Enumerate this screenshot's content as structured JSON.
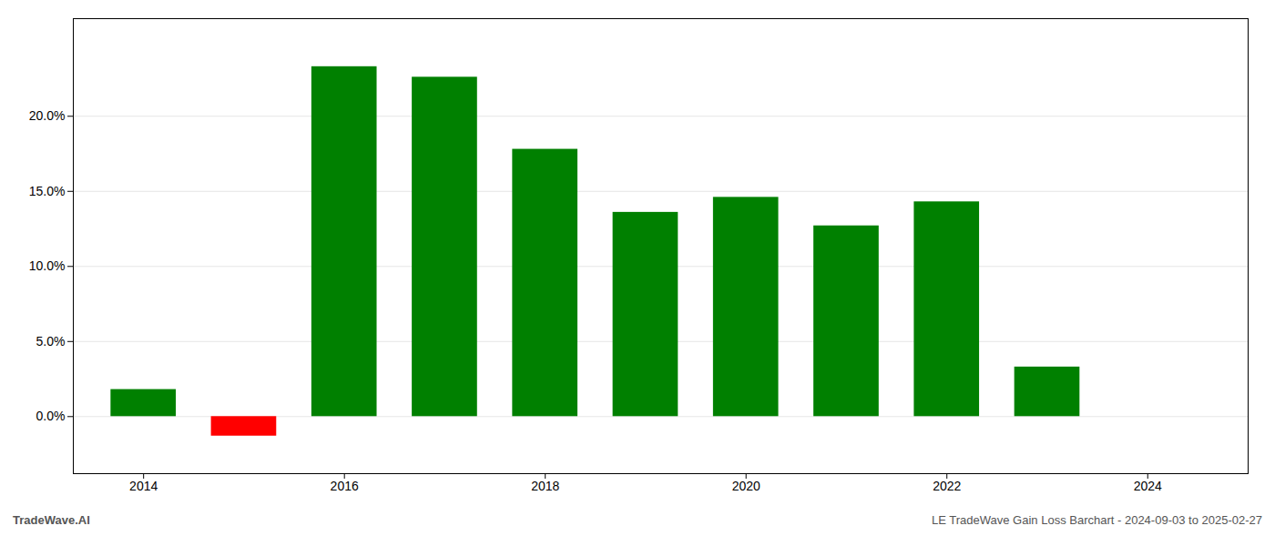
{
  "chart_data": {
    "type": "bar",
    "title": "LE TradeWave Gain Loss Barchart - 2024-09-03 to 2025-02-27",
    "annotations": [
      "TradeWave.AI"
    ],
    "x": [
      2014,
      2015,
      2016,
      2017,
      2018,
      2019,
      2020,
      2021,
      2022,
      2023
    ],
    "values": [
      0.018,
      -0.013,
      0.233,
      0.226,
      0.178,
      0.136,
      0.146,
      0.127,
      0.143,
      0.033
    ],
    "colors": [
      "#008000",
      "#ff0000",
      "#008000",
      "#008000",
      "#008000",
      "#008000",
      "#008000",
      "#008000",
      "#008000",
      "#008000"
    ],
    "xlim": [
      2013.3,
      2025.0
    ],
    "xticks": [
      2014,
      2016,
      2018,
      2020,
      2022,
      2024
    ],
    "ylim": [
      -0.038,
      0.265
    ],
    "yticks": [
      {
        "value": 0.0,
        "label": "0.0%"
      },
      {
        "value": 0.05,
        "label": "5.0%"
      },
      {
        "value": 0.1,
        "label": "10.0%"
      },
      {
        "value": 0.15,
        "label": "15.0%"
      },
      {
        "value": 0.2,
        "label": "20.0%"
      }
    ],
    "grid": true
  }
}
